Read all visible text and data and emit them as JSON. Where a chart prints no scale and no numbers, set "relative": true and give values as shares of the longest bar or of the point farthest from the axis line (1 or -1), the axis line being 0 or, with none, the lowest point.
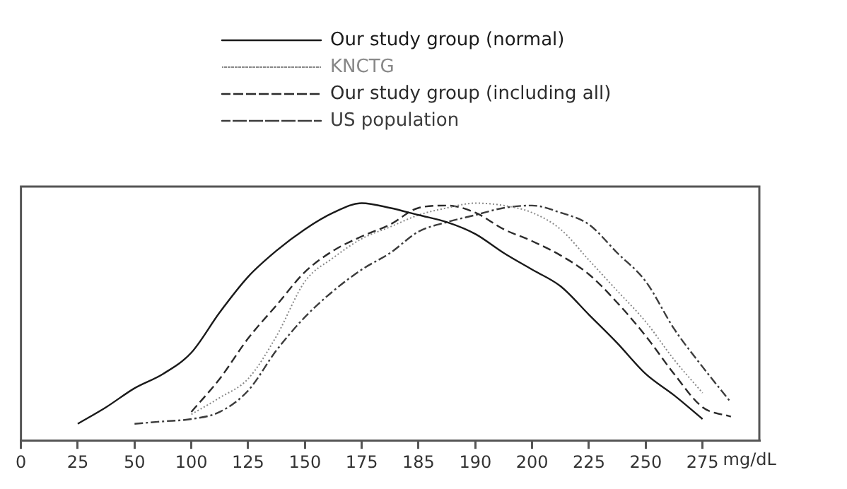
{
  "chart_data": {
    "type": "line",
    "relative": true,
    "xlabel": "mg/dL",
    "legend": "top",
    "grid": false,
    "marker": "none",
    "categories": [
      "0",
      null,
      "25",
      null,
      "50",
      null,
      "100",
      null,
      "125",
      null,
      "150",
      null,
      "175",
      null,
      "185",
      null,
      "190",
      null,
      "200",
      null,
      "225",
      null,
      "250",
      null,
      "275",
      null,
      null
    ],
    "series": [
      {
        "name": "Our study group (normal)",
        "color": "#1a1a1a",
        "line_style": "solid",
        "values": [
          null,
          null,
          0.07,
          0.14,
          0.22,
          0.28,
          0.37,
          0.54,
          0.69,
          0.8,
          0.89,
          0.96,
          1.0,
          0.98,
          0.95,
          0.92,
          0.87,
          0.79,
          0.72,
          0.65,
          0.53,
          0.41,
          0.28,
          0.19,
          0.09,
          null,
          null
        ]
      },
      {
        "name": "KNCTG",
        "color": "#888888",
        "line_style": "dotted",
        "values": [
          null,
          null,
          null,
          null,
          null,
          null,
          0.11,
          0.18,
          0.26,
          0.44,
          0.67,
          0.77,
          0.85,
          0.9,
          0.95,
          0.98,
          1.0,
          0.99,
          0.96,
          0.89,
          0.76,
          0.63,
          0.5,
          0.34,
          0.2,
          null,
          null
        ]
      },
      {
        "name": "Our study group (including all)",
        "color": "#2b2b2b",
        "line_style": "dashed",
        "values": [
          null,
          null,
          null,
          null,
          null,
          null,
          0.12,
          0.26,
          0.43,
          0.57,
          0.71,
          0.8,
          0.86,
          0.91,
          0.98,
          0.99,
          0.96,
          0.89,
          0.84,
          0.78,
          0.7,
          0.58,
          0.44,
          0.28,
          0.14,
          0.1,
          null
        ]
      },
      {
        "name": "US population",
        "color": "#3c3c3c",
        "line_style": "dashdot",
        "values": [
          null,
          null,
          null,
          null,
          0.07,
          0.08,
          0.09,
          0.12,
          0.21,
          0.38,
          0.52,
          0.63,
          0.72,
          0.79,
          0.88,
          0.92,
          0.95,
          0.98,
          0.99,
          0.96,
          0.91,
          0.79,
          0.67,
          0.47,
          0.31,
          0.16,
          null
        ]
      }
    ]
  }
}
